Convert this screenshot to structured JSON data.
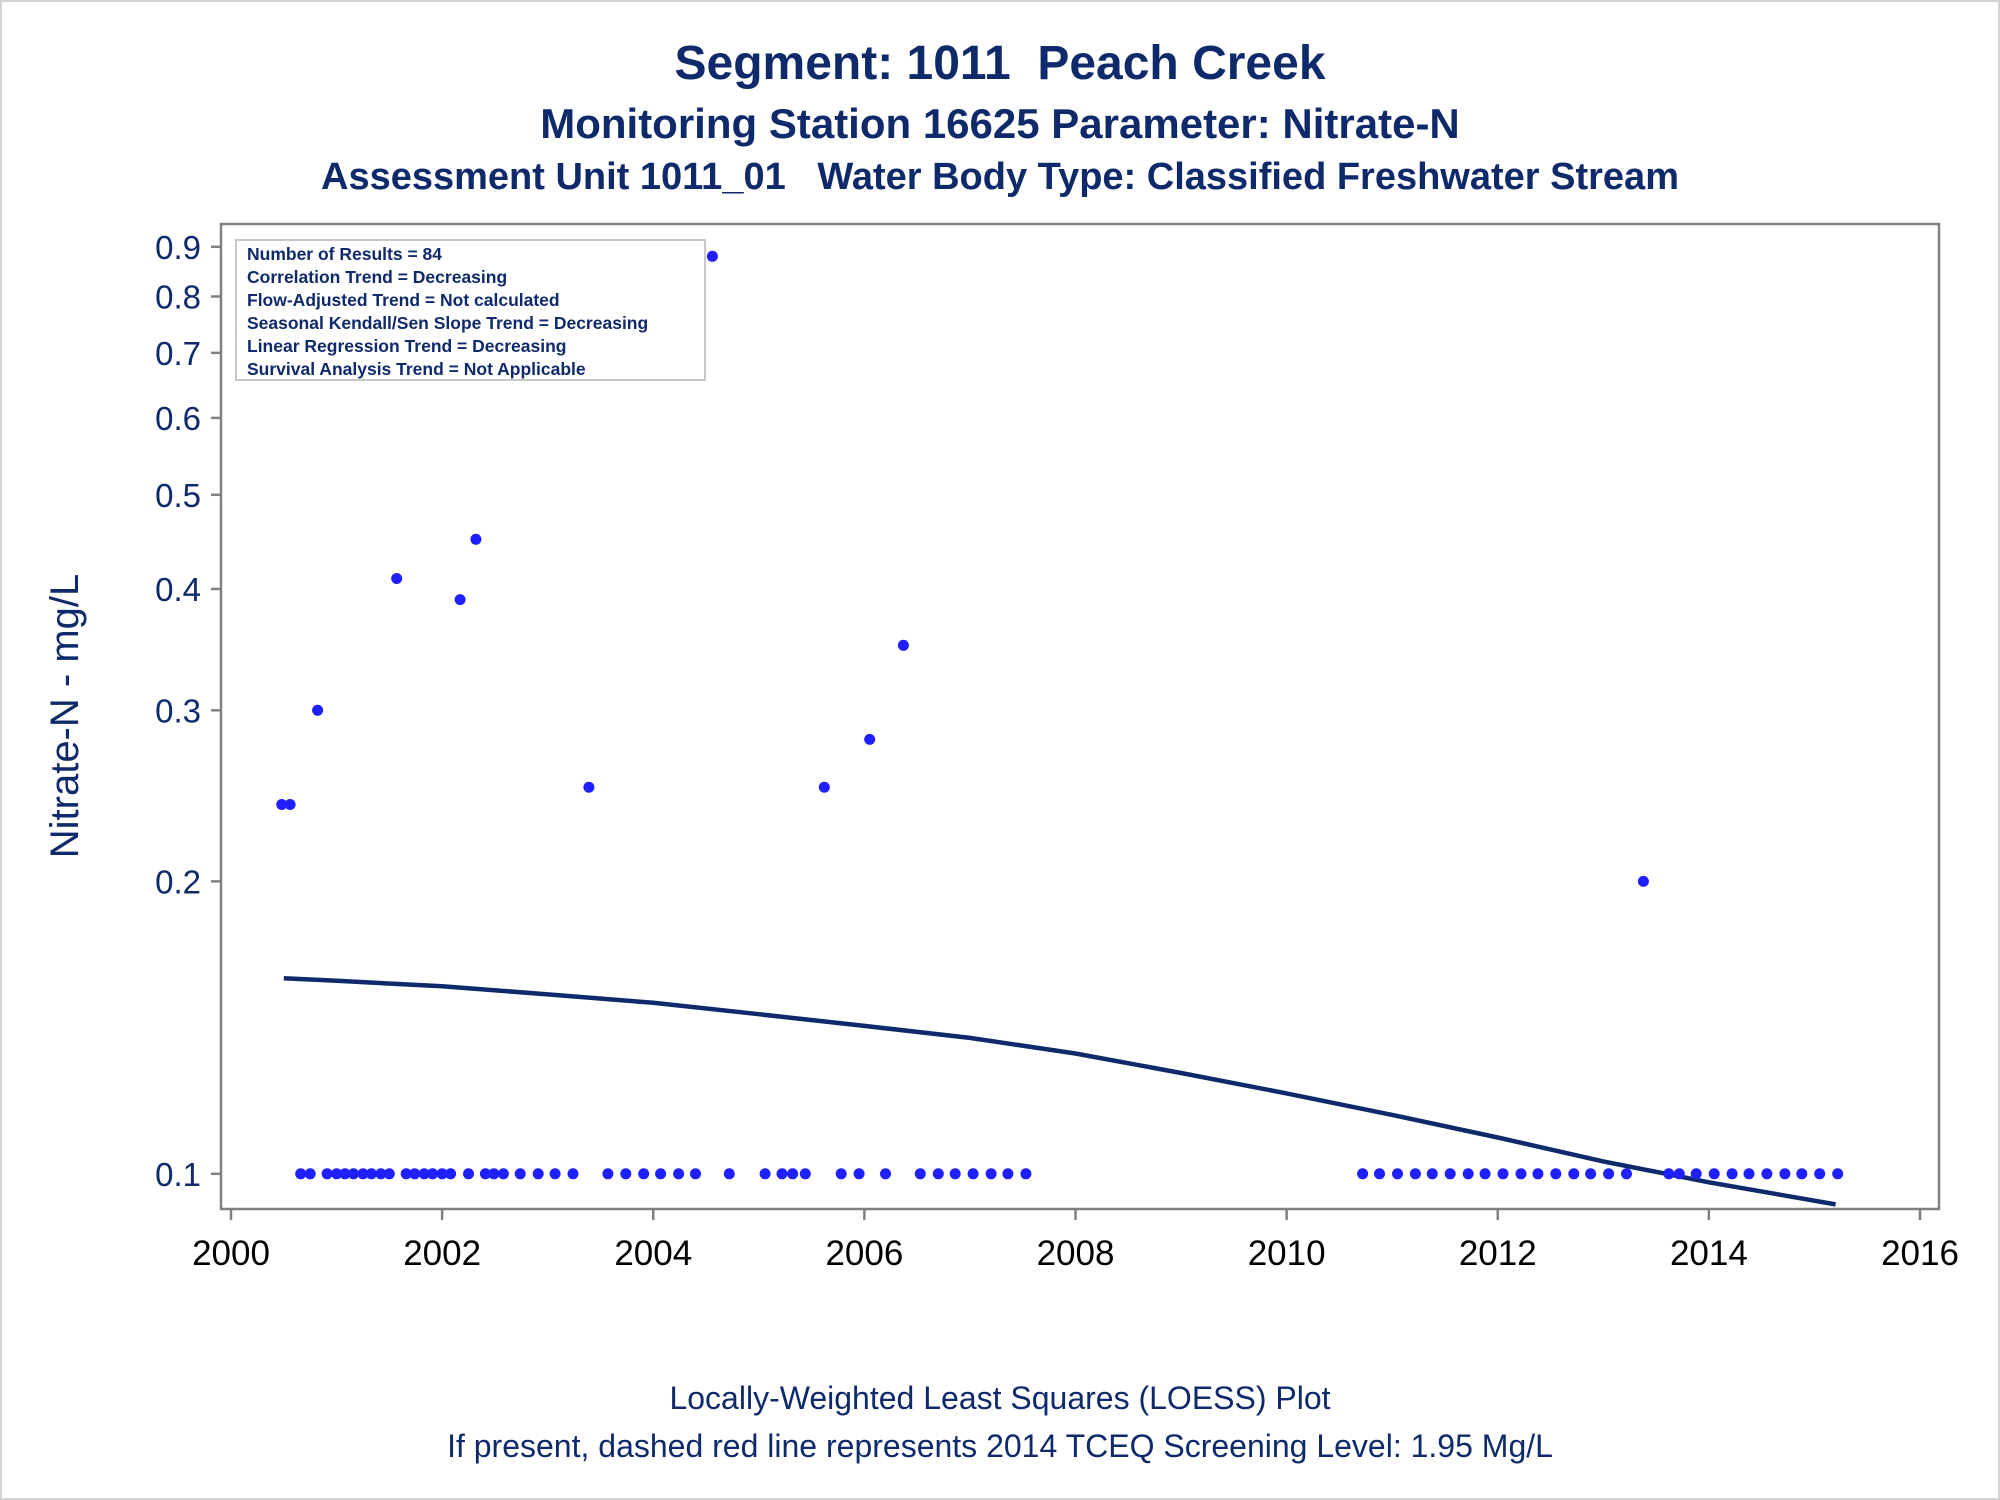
{
  "chart_data": {
    "type": "scatter",
    "title": "Segment: 1011  Peach Creek",
    "subtitle": "Monitoring Station 16625 Parameter: Nitrate-N",
    "subtitle2": "Assessment Unit 1011_01   Water Body Type: Classified Freshwater Stream",
    "xlabel": "",
    "ylabel": "Nitrate-N - mg/L",
    "y_scale": "log",
    "xlim": [
      2000,
      2016
    ],
    "ylim": [
      0.092,
      0.95
    ],
    "x_ticks": [
      "2000",
      "2002",
      "2004",
      "2006",
      "2008",
      "2010",
      "2012",
      "2014",
      "2016"
    ],
    "y_ticks": [
      {
        "value": 0.1,
        "label": "0.1"
      },
      {
        "value": 0.2,
        "label": "0.2"
      },
      {
        "value": 0.3,
        "label": "0.3"
      },
      {
        "value": 0.4,
        "label": "0.4"
      },
      {
        "value": 0.5,
        "label": "0.5"
      },
      {
        "value": 0.6,
        "label": "0.6"
      },
      {
        "value": 0.7,
        "label": "0.7"
      },
      {
        "value": 0.8,
        "label": "0.8"
      },
      {
        "value": 0.9,
        "label": "0.9"
      }
    ],
    "grid": false,
    "legend_placement": "top-left",
    "stats_box": [
      "Number of Results = 84",
      "Correlation Trend = Decreasing",
      "Flow-Adjusted Trend = Not calculated",
      "Seasonal Kendall/Sen Slope Trend = Decreasing",
      "Linear Regression Trend = Decreasing",
      "Survival Analysis Trend = Not Applicable"
    ],
    "colors": {
      "points": "#1f1fff",
      "loess": "#0f2a6b",
      "text": "#0f2a6b",
      "axes": "#808080"
    },
    "points": [
      {
        "x": 2000.48,
        "y": 0.24
      },
      {
        "x": 2000.56,
        "y": 0.24
      },
      {
        "x": 2000.82,
        "y": 0.3
      },
      {
        "x": 2001.57,
        "y": 0.41
      },
      {
        "x": 2002.17,
        "y": 0.39
      },
      {
        "x": 2002.32,
        "y": 0.45
      },
      {
        "x": 2003.39,
        "y": 0.25
      },
      {
        "x": 2004.56,
        "y": 0.88
      },
      {
        "x": 2005.62,
        "y": 0.25
      },
      {
        "x": 2006.05,
        "y": 0.28
      },
      {
        "x": 2006.37,
        "y": 0.35
      },
      {
        "x": 2013.38,
        "y": 0.2
      },
      {
        "x": 2000.66,
        "y": 0.1
      },
      {
        "x": 2000.75,
        "y": 0.1
      },
      {
        "x": 2000.91,
        "y": 0.1
      },
      {
        "x": 2001.0,
        "y": 0.1
      },
      {
        "x": 2001.08,
        "y": 0.1
      },
      {
        "x": 2001.16,
        "y": 0.1
      },
      {
        "x": 2001.25,
        "y": 0.1
      },
      {
        "x": 2001.33,
        "y": 0.1
      },
      {
        "x": 2001.42,
        "y": 0.1
      },
      {
        "x": 2001.5,
        "y": 0.1
      },
      {
        "x": 2001.66,
        "y": 0.1
      },
      {
        "x": 2001.74,
        "y": 0.1
      },
      {
        "x": 2001.83,
        "y": 0.1
      },
      {
        "x": 2001.91,
        "y": 0.1
      },
      {
        "x": 2002.0,
        "y": 0.1
      },
      {
        "x": 2002.08,
        "y": 0.1
      },
      {
        "x": 2002.25,
        "y": 0.1
      },
      {
        "x": 2002.41,
        "y": 0.1
      },
      {
        "x": 2002.49,
        "y": 0.1
      },
      {
        "x": 2002.58,
        "y": 0.1
      },
      {
        "x": 2002.74,
        "y": 0.1
      },
      {
        "x": 2002.91,
        "y": 0.1
      },
      {
        "x": 2003.07,
        "y": 0.1
      },
      {
        "x": 2003.24,
        "y": 0.1
      },
      {
        "x": 2003.57,
        "y": 0.1
      },
      {
        "x": 2003.74,
        "y": 0.1
      },
      {
        "x": 2003.91,
        "y": 0.1
      },
      {
        "x": 2004.07,
        "y": 0.1
      },
      {
        "x": 2004.24,
        "y": 0.1
      },
      {
        "x": 2004.4,
        "y": 0.1
      },
      {
        "x": 2004.72,
        "y": 0.1
      },
      {
        "x": 2005.06,
        "y": 0.1
      },
      {
        "x": 2005.22,
        "y": 0.1
      },
      {
        "x": 2005.32,
        "y": 0.1
      },
      {
        "x": 2005.44,
        "y": 0.1
      },
      {
        "x": 2005.78,
        "y": 0.1
      },
      {
        "x": 2005.95,
        "y": 0.1
      },
      {
        "x": 2006.2,
        "y": 0.1
      },
      {
        "x": 2006.53,
        "y": 0.1
      },
      {
        "x": 2006.7,
        "y": 0.1
      },
      {
        "x": 2006.86,
        "y": 0.1
      },
      {
        "x": 2007.03,
        "y": 0.1
      },
      {
        "x": 2007.2,
        "y": 0.1
      },
      {
        "x": 2007.36,
        "y": 0.1
      },
      {
        "x": 2007.53,
        "y": 0.1
      },
      {
        "x": 2010.72,
        "y": 0.1
      },
      {
        "x": 2010.88,
        "y": 0.1
      },
      {
        "x": 2011.05,
        "y": 0.1
      },
      {
        "x": 2011.22,
        "y": 0.1
      },
      {
        "x": 2011.38,
        "y": 0.1
      },
      {
        "x": 2011.55,
        "y": 0.1
      },
      {
        "x": 2011.72,
        "y": 0.1
      },
      {
        "x": 2011.88,
        "y": 0.1
      },
      {
        "x": 2012.05,
        "y": 0.1
      },
      {
        "x": 2012.22,
        "y": 0.1
      },
      {
        "x": 2012.38,
        "y": 0.1
      },
      {
        "x": 2012.55,
        "y": 0.1
      },
      {
        "x": 2012.72,
        "y": 0.1
      },
      {
        "x": 2012.88,
        "y": 0.1
      },
      {
        "x": 2013.05,
        "y": 0.1
      },
      {
        "x": 2013.22,
        "y": 0.1
      },
      {
        "x": 2013.62,
        "y": 0.1
      },
      {
        "x": 2013.72,
        "y": 0.1
      },
      {
        "x": 2013.88,
        "y": 0.1
      },
      {
        "x": 2014.05,
        "y": 0.1
      },
      {
        "x": 2014.22,
        "y": 0.1
      },
      {
        "x": 2014.38,
        "y": 0.1
      },
      {
        "x": 2014.55,
        "y": 0.1
      },
      {
        "x": 2014.72,
        "y": 0.1
      },
      {
        "x": 2014.88,
        "y": 0.1
      },
      {
        "x": 2015.05,
        "y": 0.1
      },
      {
        "x": 2015.22,
        "y": 0.1
      }
    ],
    "loess": [
      {
        "x": 2000.5,
        "y": 0.159
      },
      {
        "x": 2001.0,
        "y": 0.158
      },
      {
        "x": 2002.0,
        "y": 0.156
      },
      {
        "x": 2003.0,
        "y": 0.153
      },
      {
        "x": 2004.0,
        "y": 0.15
      },
      {
        "x": 2005.0,
        "y": 0.146
      },
      {
        "x": 2006.0,
        "y": 0.142
      },
      {
        "x": 2007.0,
        "y": 0.138
      },
      {
        "x": 2008.0,
        "y": 0.133
      },
      {
        "x": 2009.0,
        "y": 0.127
      },
      {
        "x": 2010.0,
        "y": 0.121
      },
      {
        "x": 2011.0,
        "y": 0.115
      },
      {
        "x": 2012.0,
        "y": 0.109
      },
      {
        "x": 2013.0,
        "y": 0.103
      },
      {
        "x": 2014.0,
        "y": 0.098
      },
      {
        "x": 2015.2,
        "y": 0.093
      }
    ]
  },
  "footnotes": [
    "Locally-Weighted Least Squares (LOESS) Plot",
    "If present, dashed red line represents 2014 TCEQ Screening Level: 1.95 Mg/L"
  ]
}
